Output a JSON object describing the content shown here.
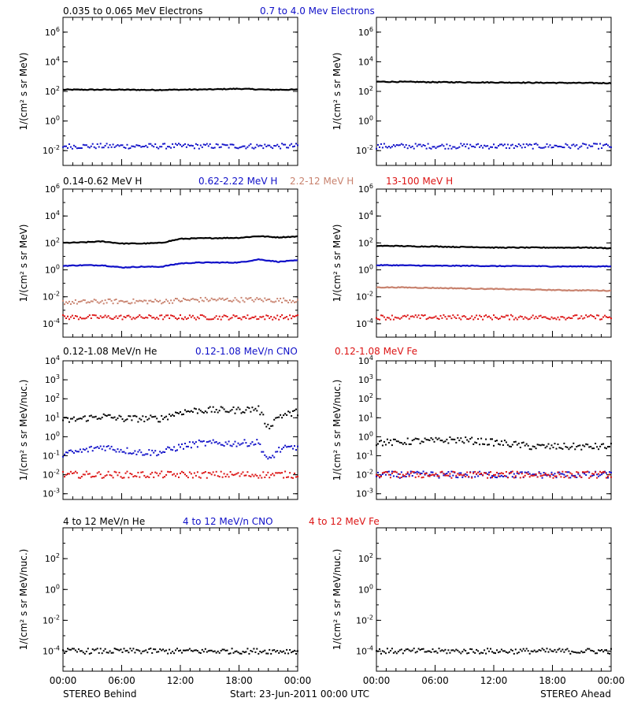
{
  "figure": {
    "footer_left": "STEREO Behind",
    "footer_center": "Start: 23-Jun-2011 00:00 UTC",
    "footer_right": "STEREO Ahead",
    "x_tick_labels": [
      "00:00",
      "06:00",
      "12:00",
      "18:00",
      "00:00"
    ]
  },
  "rows": [
    {
      "headers": [
        {
          "text": "0.035 to 0.065 MeV Electrons",
          "color": "#000000"
        },
        {
          "text": "0.7 to 4.0 Mev Electrons",
          "color": "#1010c8"
        }
      ]
    },
    {
      "headers": [
        {
          "text": "0.14-0.62 MeV H",
          "color": "#000000"
        },
        {
          "text": "0.62-2.22 MeV H",
          "color": "#1010c8"
        },
        {
          "text": "2.2-12 MeV H",
          "color": "#c8826e"
        },
        {
          "text": "13-100 MeV H",
          "color": "#dc1414"
        }
      ]
    },
    {
      "headers": [
        {
          "text": "0.12-1.08 MeV/n He",
          "color": "#000000"
        },
        {
          "text": "0.12-1.08 MeV/n CNO",
          "color": "#1010c8"
        },
        {
          "text": "0.12-1.08 MeV Fe",
          "color": "#dc1414"
        }
      ]
    },
    {
      "headers": [
        {
          "text": "4 to 12 MeV/n He",
          "color": "#000000"
        },
        {
          "text": "4 to 12 MeV/n CNO",
          "color": "#1010c8"
        },
        {
          "text": "4 to 12 MeV Fe",
          "color": "#dc1414"
        }
      ]
    }
  ],
  "chart_data": [
    {
      "type": "scatter",
      "panel": "STEREO Behind electrons",
      "y_scale": "log",
      "ylim": [
        0.001,
        10000000
      ],
      "ylabel": "1/(cm² s sr MeV)",
      "y_ticks": [
        "10^-2",
        "10^0",
        "10^2",
        "10^4",
        "10^6"
      ],
      "x_range": [
        "00:00",
        "00:00"
      ],
      "x_ticks": [
        "00:00",
        "06:00",
        "12:00",
        "18:00",
        "00:00"
      ],
      "series": [
        {
          "name": "0.035 to 0.065 MeV Electrons",
          "color": "#000000",
          "style": "line",
          "x": [
            0,
            3,
            6,
            9,
            12,
            15,
            18,
            21,
            24
          ],
          "y": [
            130,
            130,
            130,
            125,
            130,
            135,
            150,
            130,
            130
          ]
        },
        {
          "name": "0.7 to 4.0 Mev Electrons",
          "color": "#1010c8",
          "style": "dots",
          "x": [
            0,
            3,
            6,
            9,
            12,
            15,
            18,
            21,
            24
          ],
          "y": [
            0.02,
            0.02,
            0.02,
            0.02,
            0.02,
            0.02,
            0.02,
            0.02,
            0.02
          ]
        }
      ]
    },
    {
      "type": "scatter",
      "panel": "STEREO Ahead electrons",
      "y_scale": "log",
      "ylim": [
        0.001,
        10000000
      ],
      "ylabel": "1/(cm² s sr MeV)",
      "y_ticks": [
        "10^-2",
        "10^0",
        "10^2",
        "10^4",
        "10^6"
      ],
      "x_range": [
        "00:00",
        "00:00"
      ],
      "x_ticks": [
        "00:00",
        "06:00",
        "12:00",
        "18:00",
        "00:00"
      ],
      "series": [
        {
          "name": "0.035 to 0.065 MeV Electrons",
          "color": "#000000",
          "style": "line",
          "x": [
            0,
            3,
            6,
            9,
            12,
            15,
            18,
            21,
            24
          ],
          "y": [
            450,
            440,
            420,
            410,
            400,
            390,
            380,
            370,
            360
          ]
        },
        {
          "name": "0.7 to 4.0 Mev Electrons",
          "color": "#1010c8",
          "style": "dots",
          "x": [
            0,
            3,
            6,
            9,
            12,
            15,
            18,
            21,
            24
          ],
          "y": [
            0.02,
            0.02,
            0.02,
            0.02,
            0.02,
            0.02,
            0.02,
            0.02,
            0.02
          ]
        }
      ]
    },
    {
      "type": "line",
      "panel": "STEREO Behind protons",
      "y_scale": "log",
      "ylim": [
        1e-05,
        1000000
      ],
      "ylabel": "1/(cm² s sr MeV)",
      "y_ticks": [
        "10^-4",
        "10^-2",
        "10^0",
        "10^2",
        "10^4",
        "10^6"
      ],
      "x_range": [
        "00:00",
        "00:00"
      ],
      "x_ticks": [
        "00:00",
        "06:00",
        "12:00",
        "18:00",
        "00:00"
      ],
      "series": [
        {
          "name": "0.14-0.62 MeV H",
          "color": "#000000",
          "style": "line",
          "x": [
            0,
            2,
            4,
            6,
            8,
            10,
            12,
            14,
            16,
            18,
            20,
            22,
            24
          ],
          "y": [
            100,
            110,
            130,
            90,
            90,
            100,
            200,
            220,
            230,
            240,
            320,
            260,
            300
          ]
        },
        {
          "name": "0.62-2.22 MeV H",
          "color": "#1010c8",
          "style": "line",
          "x": [
            0,
            2,
            4,
            6,
            8,
            10,
            12,
            14,
            16,
            18,
            20,
            22,
            24
          ],
          "y": [
            2,
            2.2,
            2.2,
            1.5,
            1.7,
            1.7,
            3,
            3.5,
            3.5,
            3.5,
            6,
            4,
            5
          ]
        },
        {
          "name": "2.2-12 MeV H",
          "color": "#c8826e",
          "style": "dots",
          "x": [
            0,
            2,
            4,
            6,
            8,
            10,
            12,
            14,
            16,
            18,
            20,
            22,
            24
          ],
          "y": [
            0.004,
            0.004,
            0.0045,
            0.0045,
            0.0045,
            0.0045,
            0.0055,
            0.006,
            0.006,
            0.006,
            0.006,
            0.0055,
            0.0055
          ]
        },
        {
          "name": "13-100 MeV H",
          "color": "#dc1414",
          "style": "dots",
          "x": [
            0,
            2,
            4,
            6,
            8,
            10,
            12,
            14,
            16,
            18,
            20,
            22,
            24
          ],
          "y": [
            0.0003,
            0.0003,
            0.0003,
            0.0003,
            0.0003,
            0.0003,
            0.0003,
            0.0003,
            0.0003,
            0.0003,
            0.0003,
            0.0003,
            0.0003
          ]
        }
      ]
    },
    {
      "type": "line",
      "panel": "STEREO Ahead protons",
      "y_scale": "log",
      "ylim": [
        1e-05,
        1000000
      ],
      "ylabel": "1/(cm² s sr MeV)",
      "y_ticks": [
        "10^-4",
        "10^-2",
        "10^0",
        "10^2",
        "10^4",
        "10^6"
      ],
      "x_range": [
        "00:00",
        "00:00"
      ],
      "x_ticks": [
        "00:00",
        "06:00",
        "12:00",
        "18:00",
        "00:00"
      ],
      "series": [
        {
          "name": "0.14-0.62 MeV H",
          "color": "#000000",
          "style": "line",
          "x": [
            0,
            2,
            4,
            6,
            8,
            10,
            12,
            14,
            16,
            18,
            20,
            22,
            24
          ],
          "y": [
            60,
            60,
            55,
            55,
            50,
            50,
            45,
            45,
            45,
            45,
            45,
            45,
            40
          ]
        },
        {
          "name": "0.62-2.22 MeV H",
          "color": "#1010c8",
          "style": "line",
          "x": [
            0,
            2,
            4,
            6,
            8,
            10,
            12,
            14,
            16,
            18,
            20,
            22,
            24
          ],
          "y": [
            2.2,
            2.2,
            2.1,
            2,
            2,
            2,
            1.9,
            1.9,
            1.9,
            1.8,
            1.8,
            1.8,
            1.8
          ]
        },
        {
          "name": "2.2-12 MeV H",
          "color": "#c8826e",
          "style": "line",
          "x": [
            0,
            2,
            4,
            6,
            8,
            10,
            12,
            14,
            16,
            18,
            20,
            22,
            24
          ],
          "y": [
            0.05,
            0.05,
            0.048,
            0.045,
            0.043,
            0.04,
            0.038,
            0.036,
            0.034,
            0.032,
            0.03,
            0.03,
            0.028
          ]
        },
        {
          "name": "13-100 MeV H",
          "color": "#dc1414",
          "style": "dots",
          "x": [
            0,
            2,
            4,
            6,
            8,
            10,
            12,
            14,
            16,
            18,
            20,
            22,
            24
          ],
          "y": [
            0.0003,
            0.0003,
            0.0003,
            0.0003,
            0.0003,
            0.0003,
            0.0003,
            0.0003,
            0.0003,
            0.0003,
            0.0003,
            0.0003,
            0.0003
          ]
        }
      ]
    },
    {
      "type": "scatter",
      "panel": "STEREO Behind heavy ions low energy",
      "y_scale": "log",
      "ylim": [
        0.0005,
        10000
      ],
      "ylabel": "1/(cm² s sr MeV/nuc.)",
      "y_ticks": [
        "10^-3",
        "10^-2",
        "10^-1",
        "10^0",
        "10^1",
        "10^2",
        "10^3",
        "10^4"
      ],
      "x_range": [
        "00:00",
        "00:00"
      ],
      "x_ticks": [
        "00:00",
        "06:00",
        "12:00",
        "18:00",
        "00:00"
      ],
      "series": [
        {
          "name": "0.12-1.08 MeV/n He",
          "color": "#000000",
          "style": "dots",
          "x": [
            0,
            2,
            4,
            6,
            8,
            10,
            12,
            14,
            16,
            18,
            20,
            21,
            22,
            24
          ],
          "y": [
            7,
            9,
            12,
            9,
            9,
            9,
            20,
            25,
            25,
            25,
            30,
            3,
            12,
            20
          ]
        },
        {
          "name": "0.12-1.08 MeV/n CNO",
          "color": "#1010c8",
          "style": "dots",
          "x": [
            0,
            2,
            4,
            6,
            8,
            10,
            12,
            14,
            16,
            18,
            20,
            21,
            22,
            24
          ],
          "y": [
            0.12,
            0.18,
            0.3,
            0.2,
            0.15,
            0.15,
            0.3,
            0.45,
            0.45,
            0.45,
            0.5,
            0.05,
            0.2,
            0.3
          ]
        },
        {
          "name": "0.12-1.08 MeV Fe",
          "color": "#dc1414",
          "style": "dots",
          "x": [
            0,
            2,
            4,
            6,
            8,
            10,
            12,
            14,
            16,
            18,
            20,
            22,
            24
          ],
          "y": [
            0.01,
            0.01,
            0.01,
            0.01,
            0.01,
            0.01,
            0.01,
            0.01,
            0.01,
            0.01,
            0.01,
            0.01,
            0.01
          ]
        }
      ]
    },
    {
      "type": "scatter",
      "panel": "STEREO Ahead heavy ions low energy",
      "y_scale": "log",
      "ylim": [
        0.0005,
        10000
      ],
      "ylabel": "1/(cm² s sr MeV/nuc.)",
      "y_ticks": [
        "10^-3",
        "10^-2",
        "10^-1",
        "10^0",
        "10^1",
        "10^2",
        "10^3",
        "10^4"
      ],
      "x_range": [
        "00:00",
        "00:00"
      ],
      "x_ticks": [
        "00:00",
        "06:00",
        "12:00",
        "18:00",
        "00:00"
      ],
      "series": [
        {
          "name": "0.12-1.08 MeV/n He",
          "color": "#000000",
          "style": "dots",
          "x": [
            0,
            2,
            4,
            6,
            8,
            10,
            12,
            14,
            16,
            18,
            20,
            22,
            24
          ],
          "y": [
            0.5,
            0.5,
            0.6,
            0.6,
            0.7,
            0.6,
            0.5,
            0.4,
            0.3,
            0.3,
            0.3,
            0.3,
            0.3
          ]
        },
        {
          "name": "0.12-1.08 MeV/n CNO",
          "color": "#1010c8",
          "style": "dots",
          "x": [
            0,
            2,
            4,
            6,
            8,
            10,
            12,
            14,
            16,
            18,
            20,
            22,
            24
          ],
          "y": [
            0.01,
            0.01,
            0.01,
            0.01,
            0.01,
            0.01,
            0.01,
            0.01,
            0.01,
            0.01,
            0.01,
            0.01,
            0.01
          ]
        },
        {
          "name": "0.12-1.08 MeV Fe",
          "color": "#dc1414",
          "style": "dots",
          "x": [
            0,
            2,
            4,
            6,
            8,
            10,
            12,
            14,
            16,
            18,
            20,
            22,
            24
          ],
          "y": [
            0.01,
            0.01,
            0.01,
            0.01,
            0.01,
            0.01,
            0.01,
            0.01,
            0.01,
            0.01,
            0.01,
            0.01,
            0.01
          ]
        }
      ]
    },
    {
      "type": "scatter",
      "panel": "STEREO Behind heavy ions high energy",
      "y_scale": "log",
      "ylim": [
        5e-06,
        10000
      ],
      "ylabel": "1/(cm² s sr MeV/nuc.)",
      "y_ticks": [
        "10^-4",
        "10^-2",
        "10^0",
        "10^2"
      ],
      "x_range": [
        "00:00",
        "00:00"
      ],
      "x_ticks": [
        "00:00",
        "06:00",
        "12:00",
        "18:00",
        "00:00"
      ],
      "series": [
        {
          "name": "4 to 12 MeV/n He",
          "color": "#000000",
          "style": "dots",
          "x": [
            0,
            2,
            4,
            6,
            8,
            10,
            12,
            14,
            16,
            18,
            20,
            22,
            24
          ],
          "y": [
            0.0001,
            0.0001,
            0.0001,
            0.0001,
            0.0001,
            0.0001,
            0.0001,
            0.0001,
            0.0001,
            0.0001,
            0.0001,
            0.0001,
            0.0001
          ]
        }
      ]
    },
    {
      "type": "scatter",
      "panel": "STEREO Ahead heavy ions high energy",
      "y_scale": "log",
      "ylim": [
        5e-06,
        10000
      ],
      "ylabel": "1/(cm² s sr MeV/nuc.)",
      "y_ticks": [
        "10^-4",
        "10^-2",
        "10^0",
        "10^2"
      ],
      "x_range": [
        "00:00",
        "00:00"
      ],
      "x_ticks": [
        "00:00",
        "06:00",
        "12:00",
        "18:00",
        "00:00"
      ],
      "series": [
        {
          "name": "4 to 12 MeV/n He",
          "color": "#000000",
          "style": "dots",
          "x": [
            0,
            2,
            4,
            6,
            8,
            10,
            12,
            14,
            16,
            18,
            20,
            22,
            24
          ],
          "y": [
            0.0001,
            0.0001,
            0.0001,
            0.0001,
            0.0001,
            0.0001,
            0.0001,
            0.0001,
            0.0001,
            0.0001,
            0.0001,
            0.0001,
            0.0001
          ]
        }
      ]
    }
  ]
}
